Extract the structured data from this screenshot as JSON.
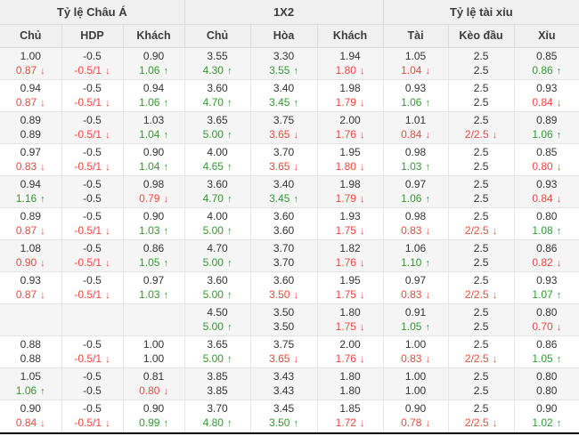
{
  "table": {
    "groups": [
      {
        "title": "Tỷ lệ Châu Á",
        "columns": [
          "Chủ",
          "HDP",
          "Khách"
        ]
      },
      {
        "title": "1X2",
        "columns": [
          "Chủ",
          "Hòa",
          "Khách"
        ]
      },
      {
        "title": "Tỷ lệ tài xỉu",
        "columns": [
          "Tài",
          "Kèo đầu",
          "Xỉu"
        ]
      }
    ],
    "arrow_up": "↑",
    "arrow_down": "↓",
    "colors": {
      "up_green": "#2e9b2e",
      "down_red": "#f0483c",
      "header_bg": "#f0f0f0",
      "row_shade_bg": "#f5f5f5",
      "text": "#333333"
    },
    "rows": [
      {
        "line1": [
          "1.00",
          "-0.5",
          "0.90",
          "3.55",
          "3.30",
          "1.94",
          "1.05",
          "2.5",
          "0.85"
        ],
        "line2": [
          [
            "0.87",
            "down"
          ],
          [
            "-0.5/1",
            "down"
          ],
          [
            "1.06",
            "up"
          ],
          [
            "4.30",
            "up"
          ],
          [
            "3.55",
            "up"
          ],
          [
            "1.80",
            "down"
          ],
          [
            "1.04",
            "down"
          ],
          [
            "2.5",
            ""
          ],
          [
            "0.86",
            "up"
          ]
        ]
      },
      {
        "line1": [
          "0.94",
          "-0.5",
          "0.94",
          "3.60",
          "3.40",
          "1.98",
          "0.93",
          "2.5",
          "0.93"
        ],
        "line2": [
          [
            "0.87",
            "down"
          ],
          [
            "-0.5/1",
            "down"
          ],
          [
            "1.06",
            "up"
          ],
          [
            "4.70",
            "up"
          ],
          [
            "3.45",
            "up"
          ],
          [
            "1.79",
            "down"
          ],
          [
            "1.06",
            "up"
          ],
          [
            "2.5",
            ""
          ],
          [
            "0.84",
            "down"
          ]
        ]
      },
      {
        "line1": [
          "0.89",
          "-0.5",
          "1.03",
          "3.65",
          "3.75",
          "2.00",
          "1.01",
          "2.5",
          "0.89"
        ],
        "line2": [
          [
            "0.89",
            ""
          ],
          [
            "-0.5/1",
            "down"
          ],
          [
            "1.04",
            "up"
          ],
          [
            "5.00",
            "up"
          ],
          [
            "3.65",
            "down"
          ],
          [
            "1.76",
            "down"
          ],
          [
            "0.84",
            "down"
          ],
          [
            "2/2.5",
            "down"
          ],
          [
            "1.06",
            "up"
          ]
        ]
      },
      {
        "line1": [
          "0.97",
          "-0.5",
          "0.90",
          "4.00",
          "3.70",
          "1.95",
          "0.98",
          "2.5",
          "0.85"
        ],
        "line2": [
          [
            "0.83",
            "down"
          ],
          [
            "-0.5/1",
            "down"
          ],
          [
            "1.04",
            "up"
          ],
          [
            "4.65",
            "up"
          ],
          [
            "3.65",
            "down"
          ],
          [
            "1.80",
            "down"
          ],
          [
            "1.03",
            "up"
          ],
          [
            "2.5",
            ""
          ],
          [
            "0.80",
            "down"
          ]
        ]
      },
      {
        "line1": [
          "0.94",
          "-0.5",
          "0.98",
          "3.60",
          "3.40",
          "1.98",
          "0.97",
          "2.5",
          "0.93"
        ],
        "line2": [
          [
            "1.16",
            "up"
          ],
          [
            "-0.5",
            ""
          ],
          [
            "0.79",
            "down"
          ],
          [
            "4.70",
            "up"
          ],
          [
            "3.45",
            "up"
          ],
          [
            "1.79",
            "down"
          ],
          [
            "1.06",
            "up"
          ],
          [
            "2.5",
            ""
          ],
          [
            "0.84",
            "down"
          ]
        ]
      },
      {
        "line1": [
          "0.89",
          "-0.5",
          "0.90",
          "4.00",
          "3.60",
          "1.93",
          "0.98",
          "2.5",
          "0.80"
        ],
        "line2": [
          [
            "0.87",
            "down"
          ],
          [
            "-0.5/1",
            "down"
          ],
          [
            "1.03",
            "up"
          ],
          [
            "5.00",
            "up"
          ],
          [
            "3.60",
            ""
          ],
          [
            "1.75",
            "down"
          ],
          [
            "0.83",
            "down"
          ],
          [
            "2/2.5",
            "down"
          ],
          [
            "1.08",
            "up"
          ]
        ]
      },
      {
        "line1": [
          "1.08",
          "-0.5",
          "0.86",
          "4.70",
          "3.70",
          "1.82",
          "1.06",
          "2.5",
          "0.86"
        ],
        "line2": [
          [
            "0.90",
            "down"
          ],
          [
            "-0.5/1",
            "down"
          ],
          [
            "1.05",
            "up"
          ],
          [
            "5.00",
            "up"
          ],
          [
            "3.70",
            ""
          ],
          [
            "1.76",
            "down"
          ],
          [
            "1.10",
            "up"
          ],
          [
            "2.5",
            ""
          ],
          [
            "0.82",
            "down"
          ]
        ]
      },
      {
        "line1": [
          "0.93",
          "-0.5",
          "0.97",
          "3.60",
          "3.60",
          "1.95",
          "0.97",
          "2.5",
          "0.93"
        ],
        "line2": [
          [
            "0.87",
            "down"
          ],
          [
            "-0.5/1",
            "down"
          ],
          [
            "1.03",
            "up"
          ],
          [
            "5.00",
            "up"
          ],
          [
            "3.50",
            "down"
          ],
          [
            "1.75",
            "down"
          ],
          [
            "0.83",
            "down"
          ],
          [
            "2/2.5",
            "down"
          ],
          [
            "1.07",
            "up"
          ]
        ]
      },
      {
        "line1": [
          "",
          "",
          "",
          "4.50",
          "3.50",
          "1.80",
          "0.91",
          "2.5",
          "0.80"
        ],
        "line2": [
          [
            "",
            ""
          ],
          [
            "",
            ""
          ],
          [
            "",
            ""
          ],
          [
            "5.00",
            "up"
          ],
          [
            "3.50",
            ""
          ],
          [
            "1.75",
            "down"
          ],
          [
            "1.05",
            "up"
          ],
          [
            "2.5",
            ""
          ],
          [
            "0.70",
            "down"
          ]
        ]
      },
      {
        "line1": [
          "0.88",
          "-0.5",
          "1.00",
          "3.65",
          "3.75",
          "2.00",
          "1.00",
          "2.5",
          "0.86"
        ],
        "line2": [
          [
            "0.88",
            ""
          ],
          [
            "-0.5/1",
            "down"
          ],
          [
            "1.00",
            ""
          ],
          [
            "5.00",
            "up"
          ],
          [
            "3.65",
            "down"
          ],
          [
            "1.76",
            "down"
          ],
          [
            "0.83",
            "down"
          ],
          [
            "2/2.5",
            "down"
          ],
          [
            "1.05",
            "up"
          ]
        ]
      },
      {
        "line1": [
          "1.05",
          "-0.5",
          "0.81",
          "3.85",
          "3.43",
          "1.80",
          "1.00",
          "2.5",
          "0.80"
        ],
        "line2": [
          [
            "1.06",
            "up"
          ],
          [
            "-0.5",
            ""
          ],
          [
            "0.80",
            "down"
          ],
          [
            "3.85",
            ""
          ],
          [
            "3.43",
            ""
          ],
          [
            "1.80",
            ""
          ],
          [
            "1.00",
            ""
          ],
          [
            "2.5",
            ""
          ],
          [
            "0.80",
            ""
          ]
        ]
      },
      {
        "line1": [
          "0.90",
          "-0.5",
          "0.90",
          "3.70",
          "3.45",
          "1.85",
          "0.90",
          "2.5",
          "0.90"
        ],
        "line2": [
          [
            "0.84",
            "down"
          ],
          [
            "-0.5/1",
            "down"
          ],
          [
            "0.99",
            "up"
          ],
          [
            "4.80",
            "up"
          ],
          [
            "3.50",
            "up"
          ],
          [
            "1.72",
            "down"
          ],
          [
            "0.78",
            "down"
          ],
          [
            "2/2.5",
            "down"
          ],
          [
            "1.02",
            "up"
          ]
        ]
      }
    ]
  }
}
